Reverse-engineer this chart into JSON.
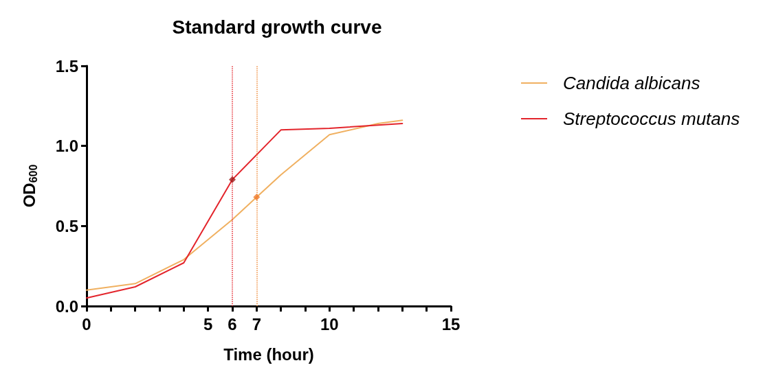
{
  "chart_data": {
    "type": "line",
    "title": "Standard growth curve",
    "xlabel": "Time (hour)",
    "ylabel": "OD$_{600}$",
    "xlim": [
      0,
      15
    ],
    "xticks": [
      0,
      {
        "value": 1,
        "label": null
      },
      {
        "value": 2,
        "label": null
      },
      {
        "value": 3,
        "label": null
      },
      {
        "value": 4,
        "label": null
      },
      5,
      6,
      7,
      {
        "value": 8,
        "label": null
      },
      {
        "value": 9,
        "label": null
      },
      10,
      {
        "value": 11,
        "label": null
      },
      {
        "value": 12,
        "label": null
      },
      {
        "value": 13,
        "label": null
      },
      {
        "value": 14,
        "label": null
      },
      15
    ],
    "ylim": [
      0,
      1.5
    ],
    "yticks": [
      {
        "value": 0,
        "label": "0.0"
      },
      {
        "value": 0.5,
        "label": "0.5"
      },
      {
        "value": 1,
        "label": "1.0"
      },
      {
        "value": 1.5,
        "label": "1.5"
      }
    ],
    "series": [
      {
        "name": "Candida albicans",
        "color": "#f0b060",
        "x": [
          0,
          2,
          4,
          6,
          7,
          8,
          10,
          12,
          13
        ],
        "values": [
          0.1,
          0.14,
          0.29,
          0.54,
          0.68,
          0.82,
          1.07,
          1.14,
          1.16
        ]
      },
      {
        "name": "Streptococcus mutans",
        "color": "#e3242b",
        "x": [
          0,
          2,
          4,
          6,
          8,
          10,
          13
        ],
        "values": [
          0.05,
          0.12,
          0.27,
          0.79,
          1.1,
          1.11,
          1.14
        ]
      },
      {
        "type": "scatter",
        "marker": "diamond",
        "color": "#a01c1c",
        "x": [
          6
        ],
        "values": [
          0.79
        ]
      },
      {
        "type": "scatter",
        "marker": "diamond",
        "color": "#f07a2a",
        "x": [
          7
        ],
        "values": [
          0.68
        ]
      }
    ],
    "ref_lines": [
      {
        "axis": "x",
        "value": 6,
        "color": "#e3242b",
        "line_style": "dotted"
      },
      {
        "axis": "x",
        "value": 7,
        "color": "#f08a3a",
        "line_style": "dotted"
      }
    ],
    "marker": "none",
    "line_style": "solid",
    "grid": false,
    "legend": "top right"
  }
}
